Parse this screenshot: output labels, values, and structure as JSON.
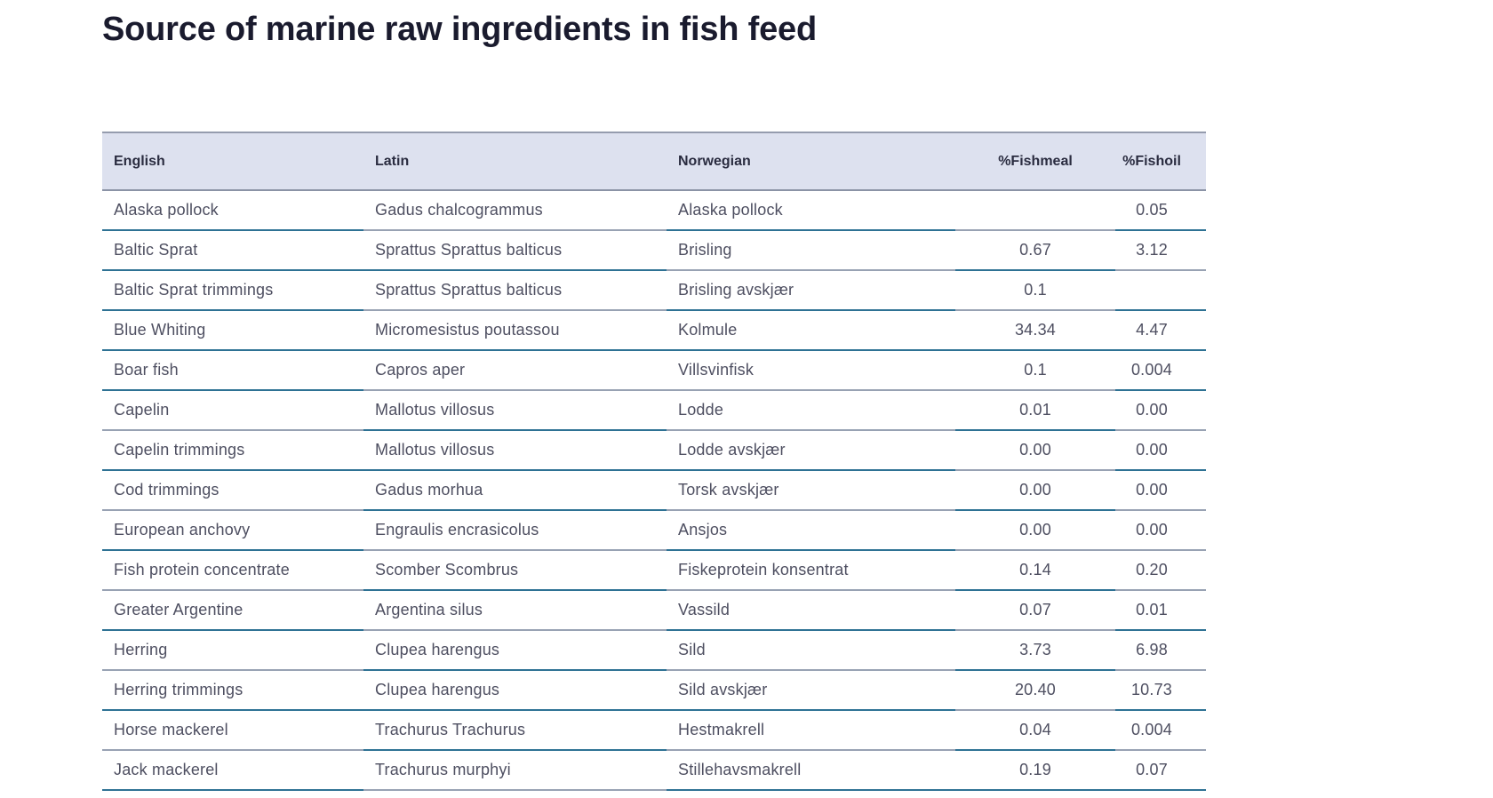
{
  "page": {
    "title": "Source of marine raw ingredients in fish feed"
  },
  "colors": {
    "header_bg": "#dde1ef",
    "title_text": "#1a1b2e",
    "header_text": "#2a2c40",
    "body_text": "#4e4f61",
    "border_gray": "#98a2b3",
    "border_blue": "#2e7294"
  },
  "table": {
    "columns": [
      "English",
      "Latin",
      "Norwegian",
      "%Fishmeal",
      "%Fishoil"
    ],
    "column_keys": [
      "english",
      "latin",
      "norwegian",
      "fishmeal",
      "fishoil"
    ],
    "rows": [
      {
        "english": "Alaska pollock",
        "latin": "Gadus chalcogrammus",
        "norwegian": "Alaska pollock",
        "fishmeal": "",
        "fishoil": "0.05"
      },
      {
        "english": "Baltic Sprat",
        "latin": "Sprattus Sprattus balticus",
        "norwegian": "Brisling",
        "fishmeal": "0.67",
        "fishoil": "3.12"
      },
      {
        "english": "Baltic Sprat trimmings",
        "latin": "Sprattus Sprattus balticus",
        "norwegian": "Brisling avskjær",
        "fishmeal": "0.1",
        "fishoil": ""
      },
      {
        "english": "Blue Whiting",
        "latin": "Micromesistus poutassou",
        "norwegian": "Kolmule",
        "fishmeal": "34.34",
        "fishoil": "4.47"
      },
      {
        "english": "Boar fish",
        "latin": "Capros aper",
        "norwegian": "Villsvinfisk",
        "fishmeal": "0.1",
        "fishoil": "0.004"
      },
      {
        "english": "Capelin",
        "latin": "Mallotus villosus",
        "norwegian": "Lodde",
        "fishmeal": "0.01",
        "fishoil": "0.00"
      },
      {
        "english": "Capelin trimmings",
        "latin": "Mallotus villosus",
        "norwegian": "Lodde avskjær",
        "fishmeal": "0.00",
        "fishoil": "0.00"
      },
      {
        "english": "Cod trimmings",
        "latin": "Gadus morhua",
        "norwegian": "Torsk avskjær",
        "fishmeal": "0.00",
        "fishoil": "0.00"
      },
      {
        "english": "European anchovy",
        "latin": "Engraulis encrasicolus",
        "norwegian": "Ansjos",
        "fishmeal": "0.00",
        "fishoil": "0.00"
      },
      {
        "english": "Fish protein concentrate",
        "latin": "Scomber Scombrus",
        "norwegian": "Fiskeprotein konsentrat",
        "fishmeal": "0.14",
        "fishoil": "0.20"
      },
      {
        "english": "Greater Argentine",
        "latin": "Argentina silus",
        "norwegian": "Vassild",
        "fishmeal": "0.07",
        "fishoil": "0.01"
      },
      {
        "english": "Herring",
        "latin": "Clupea harengus",
        "norwegian": "Sild",
        "fishmeal": "3.73",
        "fishoil": "6.98"
      },
      {
        "english": "Herring trimmings",
        "latin": "Clupea harengus",
        "norwegian": "Sild avskjær",
        "fishmeal": "20.40",
        "fishoil": "10.73"
      },
      {
        "english": "Horse mackerel",
        "latin": "Trachurus Trachurus",
        "norwegian": "Hestmakrell",
        "fishmeal": "0.04",
        "fishoil": "0.004"
      },
      {
        "english": "Jack mackerel",
        "latin": "Trachurus murphyi",
        "norwegian": "Stillehavsmakrell",
        "fishmeal": "0.19",
        "fishoil": "0.07"
      }
    ]
  }
}
